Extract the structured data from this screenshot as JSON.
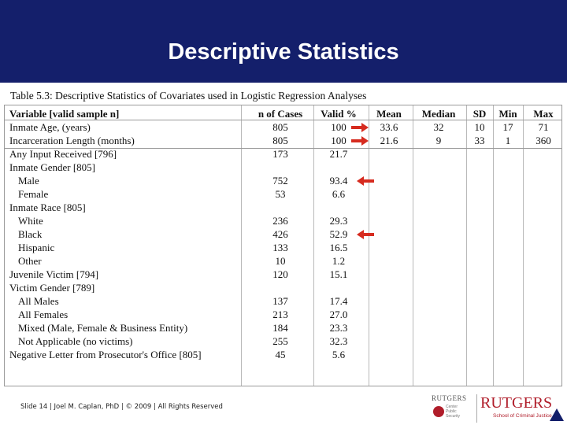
{
  "slide": {
    "title": "Descriptive Statistics",
    "footer": "Slide 14 | Joel M. Caplan, PhD | © 2009 | All Rights Reserved"
  },
  "table": {
    "caption": "Table 5.3: Descriptive Statistics of Covariates used in Logistic Regression Analyses",
    "headers": {
      "variable": "Variable [valid sample n]",
      "cases": "n of Cases",
      "valid": "Valid %",
      "mean": "Mean",
      "median": "Median",
      "sd": "SD",
      "min": "Min",
      "max": "Max"
    },
    "rows": [
      {
        "label": "Inmate Age, (years)",
        "cases": "805",
        "valid": "100",
        "mean": "33.6",
        "median": "32",
        "sd": "10",
        "min": "17",
        "max": "71"
      },
      {
        "label": "Incarceration Length (months)",
        "cases": "805",
        "valid": "100",
        "mean": "21.6",
        "median": "9",
        "sd": "33",
        "min": "1",
        "max": "360"
      },
      {
        "label": "Any Input Received [796]",
        "cases": "173",
        "valid": "21.7"
      },
      {
        "label": "Inmate Gender [805]"
      },
      {
        "label": "Male",
        "indent": true,
        "cases": "752",
        "valid": "93.4"
      },
      {
        "label": "Female",
        "indent": true,
        "cases": "53",
        "valid": "6.6"
      },
      {
        "label": "Inmate Race [805]"
      },
      {
        "label": "White",
        "indent": true,
        "cases": "236",
        "valid": "29.3"
      },
      {
        "label": "Black",
        "indent": true,
        "cases": "426",
        "valid": "52.9"
      },
      {
        "label": "Hispanic",
        "indent": true,
        "cases": "133",
        "valid": "16.5"
      },
      {
        "label": "Other",
        "indent": true,
        "cases": "10",
        "valid": "1.2"
      },
      {
        "label": "Juvenile Victim [794]",
        "cases": "120",
        "valid": "15.1"
      },
      {
        "label": "Victim Gender [789]"
      },
      {
        "label": "All Males",
        "indent": true,
        "cases": "137",
        "valid": "17.4"
      },
      {
        "label": "All Females",
        "indent": true,
        "cases": "213",
        "valid": "27.0"
      },
      {
        "label": "Mixed (Male, Female & Business Entity)",
        "indent": true,
        "cases": "184",
        "valid": "23.3"
      },
      {
        "label": "Not Applicable (no victims)",
        "indent": true,
        "cases": "255",
        "valid": "32.3"
      },
      {
        "label": "Negative Letter from Prosecutor's Office [805]",
        "cases": "45",
        "valid": "5.6"
      }
    ]
  },
  "annotations": {
    "arrow_color": "#d62b1f",
    "arrows": [
      {
        "row": 0,
        "direction": "right",
        "icon": "red-arrow-right-icon"
      },
      {
        "row": 1,
        "direction": "right",
        "icon": "red-arrow-right-icon"
      },
      {
        "row": 4,
        "direction": "left",
        "icon": "red-arrow-left-icon"
      },
      {
        "row": 8,
        "direction": "left",
        "icon": "red-arrow-left-icon"
      }
    ]
  },
  "logos": {
    "left_wordmark": "RUTGERS",
    "left_sub": [
      "Center",
      "Public",
      "Security"
    ],
    "right_wordmark": "RUTGERS",
    "right_sub": "School of Criminal Justice"
  },
  "colors": {
    "title_bar": "#141f6b",
    "brand_red": "#b01d2a"
  }
}
